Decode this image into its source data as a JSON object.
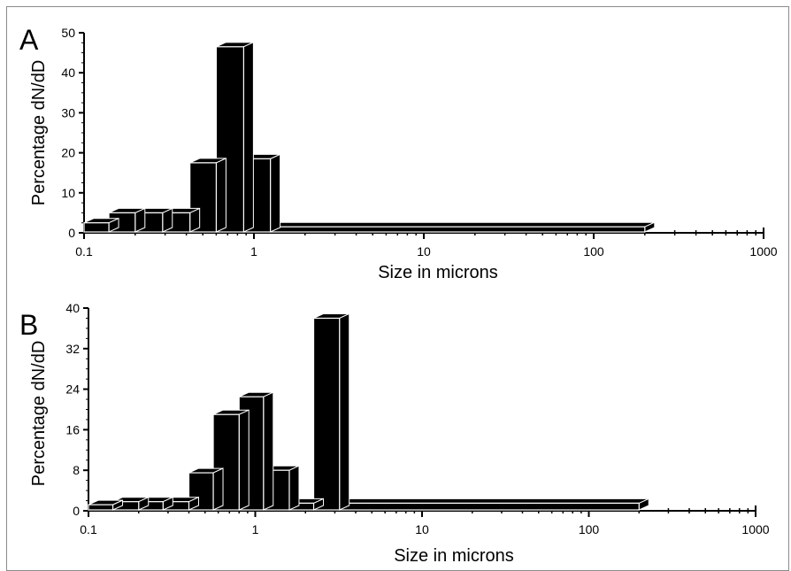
{
  "chart_data": [
    {
      "type": "bar",
      "panel_label": "A",
      "title": "",
      "xlabel": "Size in microns",
      "ylabel": "Percentage dN/dD",
      "xscale": "log",
      "xlim": [
        0.1,
        1000
      ],
      "ylim": [
        0,
        50
      ],
      "x_ticks": [
        "0.1",
        "1",
        "10",
        "100",
        "1000"
      ],
      "y_ticks": [
        "0",
        "10",
        "20",
        "30",
        "40",
        "50"
      ],
      "bins": [
        {
          "x0": 0.1,
          "x1": 0.14,
          "value": 2.5
        },
        {
          "x0": 0.14,
          "x1": 0.2,
          "value": 5
        },
        {
          "x0": 0.2,
          "x1": 0.29,
          "value": 5
        },
        {
          "x0": 0.29,
          "x1": 0.42,
          "value": 5
        },
        {
          "x0": 0.42,
          "x1": 0.6,
          "value": 17.5
        },
        {
          "x0": 0.6,
          "x1": 0.87,
          "value": 46.5
        },
        {
          "x0": 0.87,
          "x1": 1.25,
          "value": 18.5
        },
        {
          "x0": 1.25,
          "x1": 200,
          "value": 1.5
        }
      ],
      "grid": false,
      "legend": "none"
    },
    {
      "type": "bar",
      "panel_label": "B",
      "title": "",
      "xlabel": "Size in microns",
      "ylabel": "Percentage dN/dD",
      "xscale": "log",
      "xlim": [
        0.1,
        1000
      ],
      "ylim": [
        0,
        40
      ],
      "x_ticks": [
        "0.1",
        "1",
        "10",
        "100",
        "1000"
      ],
      "y_ticks": [
        "0",
        "8",
        "16",
        "24",
        "32",
        "40"
      ],
      "bins": [
        {
          "x0": 0.1,
          "x1": 0.14,
          "value": 1.2
        },
        {
          "x0": 0.14,
          "x1": 0.2,
          "value": 1.8
        },
        {
          "x0": 0.2,
          "x1": 0.28,
          "value": 1.8
        },
        {
          "x0": 0.28,
          "x1": 0.4,
          "value": 1.8
        },
        {
          "x0": 0.4,
          "x1": 0.56,
          "value": 7.5
        },
        {
          "x0": 0.56,
          "x1": 0.8,
          "value": 19
        },
        {
          "x0": 0.8,
          "x1": 1.12,
          "value": 22.5
        },
        {
          "x0": 1.12,
          "x1": 1.6,
          "value": 8
        },
        {
          "x0": 1.6,
          "x1": 2.24,
          "value": 1.5
        },
        {
          "x0": 2.24,
          "x1": 3.2,
          "value": 38
        },
        {
          "x0": 3.2,
          "x1": 200,
          "value": 1.5
        }
      ],
      "grid": false,
      "legend": "none"
    }
  ],
  "colors": {
    "bar_fill": "#000000",
    "bar_outline": "#ffffff",
    "axis": "#000000",
    "frame": "#8a8a8a"
  }
}
